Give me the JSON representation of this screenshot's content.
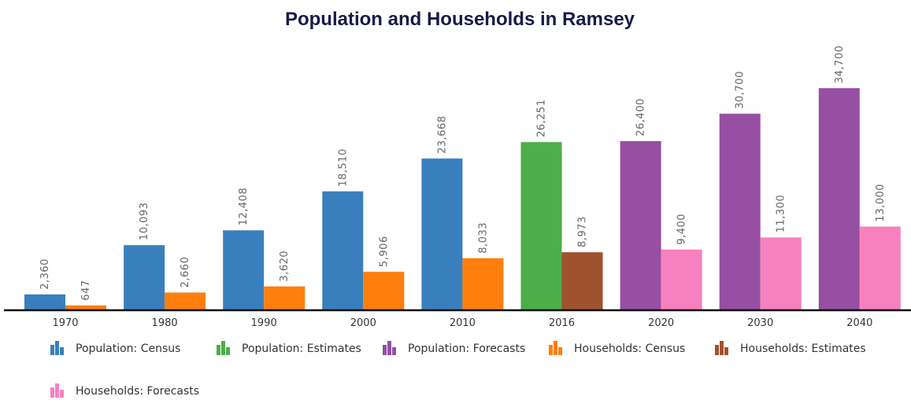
{
  "chart_data": {
    "type": "bar",
    "title": "Population and Households in Ramsey",
    "xlabel": "",
    "ylabel": "",
    "ylim": [
      0,
      39000
    ],
    "grid": false,
    "legend_position": "bottom-left",
    "categories": [
      "1970",
      "1980",
      "1990",
      "2000",
      "2010",
      "2016",
      "2020",
      "2030",
      "2040"
    ],
    "series": [
      {
        "name": "Population: Census",
        "color": "#3a7fbd",
        "points": [
          {
            "x": "1970",
            "y": 2360,
            "label": "2,360"
          },
          {
            "x": "1980",
            "y": 10093,
            "label": "10,093"
          },
          {
            "x": "1990",
            "y": 12408,
            "label": "12,408"
          },
          {
            "x": "2000",
            "y": 18510,
            "label": "18,510"
          },
          {
            "x": "2010",
            "y": 23668,
            "label": "23,668"
          }
        ]
      },
      {
        "name": "Population: Estimates",
        "color": "#4dae49",
        "points": [
          {
            "x": "2016",
            "y": 26251,
            "label": "26,251"
          }
        ]
      },
      {
        "name": "Population: Forecasts",
        "color": "#964fa2",
        "points": [
          {
            "x": "2020",
            "y": 26400,
            "label": "26,400"
          },
          {
            "x": "2030",
            "y": 30700,
            "label": "30,700"
          },
          {
            "x": "2040",
            "y": 34700,
            "label": "34,700"
          }
        ]
      },
      {
        "name": "Households: Census",
        "color": "#ff7f0e",
        "points": [
          {
            "x": "1970",
            "y": 647,
            "label": "647"
          },
          {
            "x": "1980",
            "y": 2660,
            "label": "2,660"
          },
          {
            "x": "1990",
            "y": 3620,
            "label": "3,620"
          },
          {
            "x": "2000",
            "y": 5906,
            "label": "5,906"
          },
          {
            "x": "2010",
            "y": 8033,
            "label": "8,033"
          }
        ]
      },
      {
        "name": "Households: Estimates",
        "color": "#a0522d",
        "points": [
          {
            "x": "2016",
            "y": 8973,
            "label": "8,973"
          }
        ]
      },
      {
        "name": "Households: Forecasts",
        "color": "#f781bf",
        "points": [
          {
            "x": "2020",
            "y": 9400,
            "label": "9,400"
          },
          {
            "x": "2030",
            "y": 11300,
            "label": "11,300"
          },
          {
            "x": "2040",
            "y": 13000,
            "label": "13,000"
          }
        ]
      }
    ]
  }
}
